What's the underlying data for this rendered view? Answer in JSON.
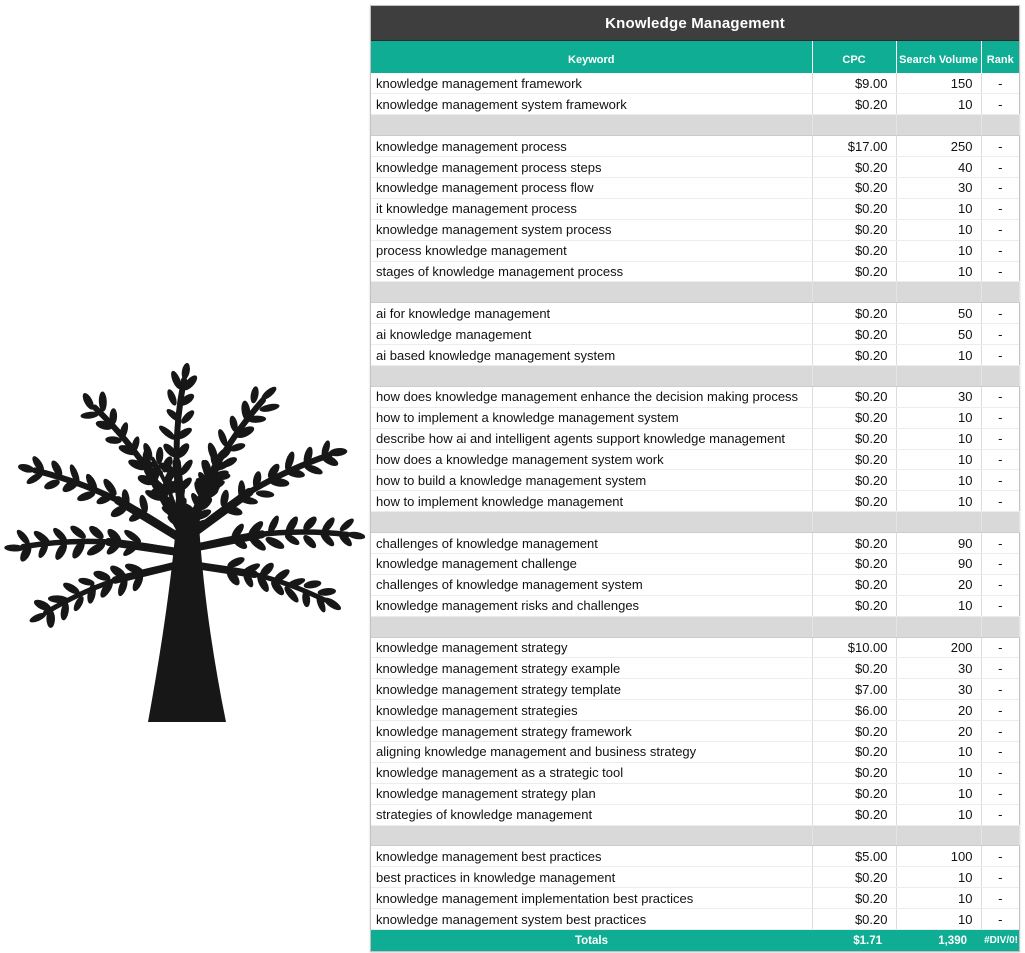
{
  "colors": {
    "header_teal": "#0EAD94",
    "title_bar": "#3E3E3E",
    "spacer_gray": "#D9D9D9",
    "text": "#111111",
    "tree_black": "#171717"
  },
  "illustration": {
    "name": "tree-silhouette"
  },
  "table": {
    "title": "Knowledge Management",
    "columns": [
      "Keyword",
      "CPC",
      "Search Volume",
      "Rank"
    ],
    "groups": [
      [
        [
          "knowledge management framework",
          "$9.00",
          "150",
          "-"
        ],
        [
          "knowledge management system framework",
          "$0.20",
          "10",
          "-"
        ]
      ],
      [
        [
          "knowledge management process",
          "$17.00",
          "250",
          "-"
        ],
        [
          "knowledge management process steps",
          "$0.20",
          "40",
          "-"
        ],
        [
          "knowledge management process flow",
          "$0.20",
          "30",
          "-"
        ],
        [
          "it knowledge management process",
          "$0.20",
          "10",
          "-"
        ],
        [
          "knowledge management system process",
          "$0.20",
          "10",
          "-"
        ],
        [
          "process knowledge management",
          "$0.20",
          "10",
          "-"
        ],
        [
          "stages of knowledge management process",
          "$0.20",
          "10",
          "-"
        ]
      ],
      [
        [
          "ai for knowledge management",
          "$0.20",
          "50",
          "-"
        ],
        [
          "ai knowledge management",
          "$0.20",
          "50",
          "-"
        ],
        [
          "ai based knowledge management system",
          "$0.20",
          "10",
          "-"
        ]
      ],
      [
        [
          "how does knowledge management enhance the decision making process",
          "$0.20",
          "30",
          "-"
        ],
        [
          "how to implement a knowledge management system",
          "$0.20",
          "10",
          "-"
        ],
        [
          "describe how ai and intelligent agents support knowledge management",
          "$0.20",
          "10",
          "-"
        ],
        [
          "how does a knowledge management system work",
          "$0.20",
          "10",
          "-"
        ],
        [
          "how to build a knowledge management system",
          "$0.20",
          "10",
          "-"
        ],
        [
          "how to implement knowledge management",
          "$0.20",
          "10",
          "-"
        ]
      ],
      [
        [
          "challenges of knowledge management",
          "$0.20",
          "90",
          "-"
        ],
        [
          "knowledge management challenge",
          "$0.20",
          "90",
          "-"
        ],
        [
          "challenges of knowledge management system",
          "$0.20",
          "20",
          "-"
        ],
        [
          "knowledge management risks and challenges",
          "$0.20",
          "10",
          "-"
        ]
      ],
      [
        [
          "knowledge management strategy",
          "$10.00",
          "200",
          "-"
        ],
        [
          "knowledge management strategy example",
          "$0.20",
          "30",
          "-"
        ],
        [
          "knowledge management strategy template",
          "$7.00",
          "30",
          "-"
        ],
        [
          "knowledge management strategies",
          "$6.00",
          "20",
          "-"
        ],
        [
          "knowledge management strategy framework",
          "$0.20",
          "20",
          "-"
        ],
        [
          "aligning knowledge management and business strategy",
          "$0.20",
          "10",
          "-"
        ],
        [
          "knowledge management as a strategic tool",
          "$0.20",
          "10",
          "-"
        ],
        [
          "knowledge management strategy plan",
          "$0.20",
          "10",
          "-"
        ],
        [
          "strategies of knowledge management",
          "$0.20",
          "10",
          "-"
        ]
      ],
      [
        [
          "knowledge management best practices",
          "$5.00",
          "100",
          "-"
        ],
        [
          "best practices in knowledge management",
          "$0.20",
          "10",
          "-"
        ],
        [
          "knowledge management implementation best practices",
          "$0.20",
          "10",
          "-"
        ],
        [
          "knowledge management system best practices",
          "$0.20",
          "10",
          "-"
        ]
      ]
    ],
    "totals": {
      "label": "Totals",
      "cpc": "$1.71",
      "volume": "1,390",
      "rank": "#DIV/0!"
    }
  }
}
